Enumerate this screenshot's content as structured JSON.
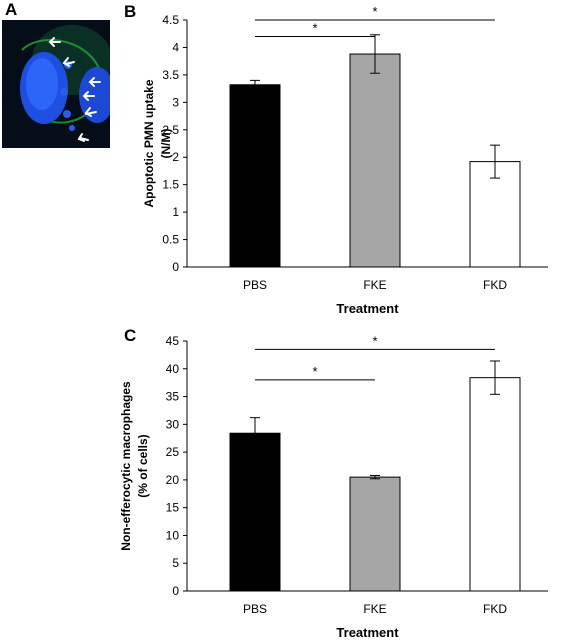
{
  "panels": {
    "a": "A",
    "b": "B",
    "c": "C"
  },
  "micrograph": {
    "description_icon": "fluorescence-micrograph",
    "arrow_count": 6,
    "colors": {
      "background": "#050d18",
      "nucleus": "#1f4fe0",
      "membrane": "#1a9a35",
      "arrow": "#ffffff"
    }
  },
  "chart_data": [
    {
      "type": "bar",
      "panel": "B",
      "categories": [
        "PBS",
        "FKE",
        "FKD"
      ],
      "values": [
        3.32,
        3.88,
        1.92
      ],
      "errors": [
        0.08,
        0.35,
        0.3
      ],
      "bar_colors": [
        "#000000",
        "#a6a6a6",
        "#ffffff"
      ],
      "xlabel": "Treatment",
      "ylabel_line1": "Apoptotic PMN uptake",
      "ylabel_line2": "(N/M)",
      "ylim": [
        0,
        4.5
      ],
      "yticks": [
        "0",
        "0.5",
        "1",
        "1.5",
        "2",
        "2.5",
        "3",
        "3.5",
        "4",
        "4.5"
      ],
      "significance": [
        {
          "from": 0,
          "to": 2,
          "label": "*",
          "y": 4.5
        },
        {
          "from": 0,
          "to": 1,
          "label": "*",
          "y": 4.2
        }
      ]
    },
    {
      "type": "bar",
      "panel": "C",
      "categories": [
        "PBS",
        "FKE",
        "FKD"
      ],
      "values": [
        28.4,
        20.5,
        38.4
      ],
      "errors": [
        2.8,
        0.3,
        3.0
      ],
      "bar_colors": [
        "#000000",
        "#a6a6a6",
        "#ffffff"
      ],
      "xlabel": "Treatment",
      "ylabel_line1": "Non-efferocytic macrophages",
      "ylabel_line2": "(% of cells)",
      "ylim": [
        0,
        45
      ],
      "yticks": [
        "0",
        "5",
        "10",
        "15",
        "20",
        "25",
        "30",
        "35",
        "40",
        "45"
      ],
      "significance": [
        {
          "from": 0,
          "to": 2,
          "label": "*",
          "y": 43.5
        },
        {
          "from": 0,
          "to": 1,
          "label": "*",
          "y": 38.0
        }
      ]
    }
  ]
}
